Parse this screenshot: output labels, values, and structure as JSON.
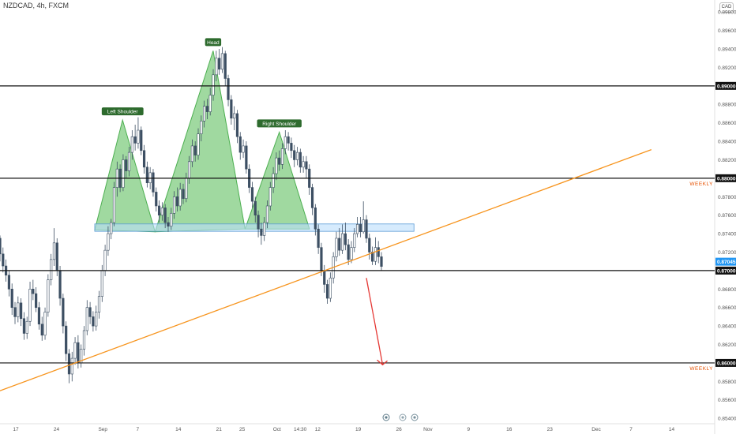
{
  "header": {
    "title": "NZDCAD, 4h, FXCM",
    "currency": "CAD"
  },
  "chart_data": {
    "type": "candlestick",
    "symbol": "NZDCAD",
    "timeframe": "4h",
    "source": "FXCM",
    "ylim": [
      0.8535,
      0.8993
    ],
    "y_ticks": [
      0.854,
      0.856,
      0.858,
      0.86,
      0.862,
      0.864,
      0.866,
      0.868,
      0.87,
      0.872,
      0.874,
      0.876,
      0.878,
      0.88,
      0.882,
      0.884,
      0.886,
      0.888,
      0.89,
      0.892,
      0.894,
      0.896,
      0.898
    ],
    "y_tick_labels": [
      "0.85400",
      "0.85600",
      "0.85800",
      "0.86000",
      "0.86200",
      "0.86400",
      "0.86600",
      "0.86800",
      "0.87000",
      "0.87200",
      "0.87400",
      "0.87600",
      "0.87800",
      "0.88000",
      "0.88200",
      "0.88400",
      "0.88600",
      "0.88800",
      "0.89000",
      "0.89200",
      "0.89400",
      "0.89600",
      "0.89800"
    ],
    "x_ticks": [
      {
        "label": "17",
        "day": 0
      },
      {
        "label": "24",
        "day": 7
      },
      {
        "label": "Sep",
        "day": 15
      },
      {
        "label": "7",
        "day": 21
      },
      {
        "label": "14",
        "day": 28
      },
      {
        "label": "21",
        "day": 35
      },
      {
        "label": "25",
        "day": 39
      },
      {
        "label": "Oct",
        "day": 45
      },
      {
        "label": "14:30",
        "day": 49
      },
      {
        "label": "12",
        "day": 52
      },
      {
        "label": "19",
        "day": 59
      },
      {
        "label": "26",
        "day": 66
      },
      {
        "label": "Nov",
        "day": 71
      },
      {
        "label": "9",
        "day": 78
      },
      {
        "label": "16",
        "day": 85
      },
      {
        "label": "23",
        "day": 92
      },
      {
        "label": "Dec",
        "day": 100
      },
      {
        "label": "7",
        "day": 106
      },
      {
        "label": "14",
        "day": 113
      }
    ],
    "horizontal_levels": [
      {
        "price": 0.89,
        "label": "0.89000"
      },
      {
        "price": 0.88,
        "label": "0.88000",
        "annotation": "WEEKLY"
      },
      {
        "price": 0.87,
        "label": "0.87000"
      },
      {
        "price": 0.86,
        "label": "0.86000",
        "annotation": "WEEKLY"
      }
    ],
    "current_price": {
      "price": 0.87045,
      "label": "0.87045"
    },
    "trendline": {
      "from": {
        "day": -9.1,
        "price": 0.8555
      },
      "to": {
        "day": 109.5,
        "price": 0.8831
      },
      "color": "#f7941d"
    },
    "support_zone": {
      "from_day": 13.6,
      "to_day": 68.6,
      "low": 0.87425,
      "high": 0.87505,
      "color": "#bbdefb"
    },
    "pattern": {
      "name": "Head and Shoulders",
      "points": [
        {
          "day": 13.6,
          "price": 0.8744
        },
        {
          "day": 18.4,
          "price": 0.8863,
          "label": "Left Shoulder"
        },
        {
          "day": 24,
          "price": 0.8742
        },
        {
          "day": 34,
          "price": 0.8938,
          "label": "Head"
        },
        {
          "day": 39.5,
          "price": 0.8745
        },
        {
          "day": 45.4,
          "price": 0.885,
          "label": "Right Shoulder"
        },
        {
          "day": 50.6,
          "price": 0.8745
        }
      ],
      "fill": "#8fd28f",
      "stroke": "#4caf50"
    },
    "projection_arrow": {
      "from": {
        "day": 60.4,
        "price": 0.8692
      },
      "to": {
        "day": 63.2,
        "price": 0.8598
      },
      "color": "#e53935"
    },
    "candles_ohlc": [
      [
        0.8735,
        0.8718,
        0.871,
        0.8738
      ],
      [
        0.8718,
        0.8705,
        0.8698,
        0.8725
      ],
      [
        0.8705,
        0.8695,
        0.8688,
        0.8712
      ],
      [
        0.8695,
        0.868,
        0.8672,
        0.87
      ],
      [
        0.868,
        0.866,
        0.8652,
        0.8686
      ],
      [
        0.866,
        0.865,
        0.8642,
        0.8666
      ],
      [
        0.865,
        0.8665,
        0.8644,
        0.8672
      ],
      [
        0.8665,
        0.8648,
        0.864,
        0.867
      ],
      [
        0.8648,
        0.8632,
        0.8625,
        0.8655
      ],
      [
        0.8632,
        0.8645,
        0.8626,
        0.865
      ],
      [
        0.8645,
        0.868,
        0.864,
        0.8688
      ],
      [
        0.868,
        0.8675,
        0.8668,
        0.869
      ],
      [
        0.8675,
        0.866,
        0.8655,
        0.8682
      ],
      [
        0.866,
        0.8642,
        0.8636,
        0.8666
      ],
      [
        0.8642,
        0.863,
        0.8624,
        0.865
      ],
      [
        0.863,
        0.8655,
        0.8625,
        0.866
      ],
      [
        0.8655,
        0.869,
        0.865,
        0.8696
      ],
      [
        0.869,
        0.8712,
        0.8684,
        0.8718
      ],
      [
        0.8712,
        0.873,
        0.8705,
        0.8746
      ],
      [
        0.873,
        0.87,
        0.8694,
        0.8735
      ],
      [
        0.87,
        0.867,
        0.8662,
        0.8705
      ],
      [
        0.867,
        0.864,
        0.8632,
        0.8675
      ],
      [
        0.864,
        0.861,
        0.8602,
        0.8645
      ],
      [
        0.861,
        0.8588,
        0.8578,
        0.8615
      ],
      [
        0.8588,
        0.8605,
        0.858,
        0.8612
      ],
      [
        0.8605,
        0.8622,
        0.8598,
        0.8628
      ],
      [
        0.8622,
        0.86,
        0.8594,
        0.863
      ],
      [
        0.86,
        0.8615,
        0.8595,
        0.862
      ],
      [
        0.8615,
        0.8635,
        0.8608,
        0.864
      ],
      [
        0.8635,
        0.866,
        0.863,
        0.8668
      ],
      [
        0.866,
        0.865,
        0.8642,
        0.8666
      ],
      [
        0.865,
        0.864,
        0.8634,
        0.8656
      ],
      [
        0.864,
        0.8655,
        0.8635,
        0.8662
      ],
      [
        0.8655,
        0.8672,
        0.8648,
        0.8678
      ],
      [
        0.8672,
        0.87,
        0.8666,
        0.8706
      ],
      [
        0.87,
        0.8722,
        0.8694,
        0.8728
      ],
      [
        0.8722,
        0.874,
        0.8716,
        0.8748
      ],
      [
        0.874,
        0.8752,
        0.8734,
        0.8756
      ],
      [
        0.8752,
        0.879,
        0.8748,
        0.8796
      ],
      [
        0.879,
        0.881,
        0.878,
        0.8818
      ],
      [
        0.881,
        0.879,
        0.8785,
        0.8815
      ],
      [
        0.879,
        0.882,
        0.8786,
        0.8826
      ],
      [
        0.882,
        0.8808,
        0.88,
        0.8824
      ],
      [
        0.8808,
        0.8828,
        0.8802,
        0.8834
      ],
      [
        0.8828,
        0.8845,
        0.882,
        0.8852
      ],
      [
        0.8845,
        0.8838,
        0.883,
        0.8858
      ],
      [
        0.8838,
        0.8852,
        0.8832,
        0.8866
      ],
      [
        0.8852,
        0.883,
        0.8825,
        0.8856
      ],
      [
        0.883,
        0.8812,
        0.8805,
        0.8836
      ],
      [
        0.8812,
        0.8795,
        0.879,
        0.8818
      ],
      [
        0.8795,
        0.8806,
        0.8788,
        0.8812
      ],
      [
        0.8806,
        0.8785,
        0.878,
        0.881
      ],
      [
        0.8785,
        0.877,
        0.8764,
        0.879
      ],
      [
        0.877,
        0.876,
        0.8752,
        0.8776
      ],
      [
        0.876,
        0.8768,
        0.8754,
        0.8774
      ],
      [
        0.8768,
        0.8752,
        0.8746,
        0.8772
      ],
      [
        0.8752,
        0.8748,
        0.8742,
        0.8758
      ],
      [
        0.8748,
        0.8762,
        0.8744,
        0.8768
      ],
      [
        0.8762,
        0.878,
        0.8756,
        0.8786
      ],
      [
        0.878,
        0.877,
        0.8764,
        0.879
      ],
      [
        0.877,
        0.8788,
        0.8765,
        0.8795
      ],
      [
        0.8788,
        0.8778,
        0.8772,
        0.8794
      ],
      [
        0.8778,
        0.88,
        0.8774,
        0.8806
      ],
      [
        0.88,
        0.8818,
        0.8794,
        0.8824
      ],
      [
        0.8818,
        0.8835,
        0.8812,
        0.8842
      ],
      [
        0.8835,
        0.8825,
        0.8818,
        0.884
      ],
      [
        0.8825,
        0.8848,
        0.882,
        0.8854
      ],
      [
        0.8848,
        0.8862,
        0.884,
        0.8868
      ],
      [
        0.8862,
        0.8878,
        0.8855,
        0.8884
      ],
      [
        0.8878,
        0.8872,
        0.8864,
        0.8886
      ],
      [
        0.8872,
        0.889,
        0.8868,
        0.8898
      ],
      [
        0.889,
        0.8912,
        0.8884,
        0.8918
      ],
      [
        0.8912,
        0.893,
        0.8905,
        0.8938
      ],
      [
        0.893,
        0.8918,
        0.8912,
        0.894
      ],
      [
        0.8918,
        0.8935,
        0.8914,
        0.8942
      ],
      [
        0.8935,
        0.8908,
        0.89,
        0.8938
      ],
      [
        0.8908,
        0.8885,
        0.8878,
        0.8912
      ],
      [
        0.8885,
        0.8865,
        0.8858,
        0.889
      ],
      [
        0.8865,
        0.887,
        0.8852,
        0.8878
      ],
      [
        0.887,
        0.8845,
        0.8838,
        0.8874
      ],
      [
        0.8845,
        0.8828,
        0.882,
        0.885
      ],
      [
        0.8828,
        0.8835,
        0.8822,
        0.8842
      ],
      [
        0.8835,
        0.881,
        0.8805,
        0.884
      ],
      [
        0.881,
        0.879,
        0.8784,
        0.8815
      ],
      [
        0.879,
        0.8775,
        0.8768,
        0.8796
      ],
      [
        0.8775,
        0.876,
        0.8752,
        0.878
      ],
      [
        0.876,
        0.8745,
        0.8736,
        0.8765
      ],
      [
        0.8745,
        0.8738,
        0.8728,
        0.8752
      ],
      [
        0.8738,
        0.8752,
        0.8732,
        0.8758
      ],
      [
        0.8752,
        0.877,
        0.8746,
        0.8776
      ],
      [
        0.877,
        0.879,
        0.8765,
        0.8796
      ],
      [
        0.879,
        0.8805,
        0.8784,
        0.8812
      ],
      [
        0.8805,
        0.8822,
        0.8798,
        0.8828
      ],
      [
        0.8822,
        0.8815,
        0.8808,
        0.883
      ],
      [
        0.8815,
        0.8832,
        0.881,
        0.8838
      ],
      [
        0.8832,
        0.8845,
        0.8826,
        0.8852
      ],
      [
        0.8845,
        0.8838,
        0.883,
        0.885
      ],
      [
        0.8838,
        0.883,
        0.8822,
        0.8844
      ],
      [
        0.883,
        0.882,
        0.8812,
        0.8836
      ],
      [
        0.882,
        0.8828,
        0.8814,
        0.8834
      ],
      [
        0.8828,
        0.8812,
        0.8806,
        0.8832
      ],
      [
        0.8812,
        0.8818,
        0.8806,
        0.8824
      ],
      [
        0.8818,
        0.881,
        0.88,
        0.8824
      ],
      [
        0.881,
        0.879,
        0.8782,
        0.8815
      ],
      [
        0.879,
        0.8768,
        0.876,
        0.8794
      ],
      [
        0.8768,
        0.8745,
        0.8738,
        0.8772
      ],
      [
        0.8745,
        0.8725,
        0.8718,
        0.875
      ],
      [
        0.8725,
        0.87,
        0.8694,
        0.873
      ],
      [
        0.87,
        0.8685,
        0.8676,
        0.8706
      ],
      [
        0.8685,
        0.867,
        0.8664,
        0.869
      ],
      [
        0.867,
        0.8692,
        0.8666,
        0.8698
      ],
      [
        0.8692,
        0.8715,
        0.8686,
        0.872
      ],
      [
        0.8715,
        0.8735,
        0.871,
        0.8742
      ],
      [
        0.8735,
        0.8722,
        0.8716,
        0.8746
      ],
      [
        0.8722,
        0.874,
        0.8718,
        0.875
      ],
      [
        0.874,
        0.8728,
        0.8722,
        0.8752
      ],
      [
        0.8728,
        0.8712,
        0.8706,
        0.8734
      ],
      [
        0.8712,
        0.8725,
        0.8708,
        0.8732
      ],
      [
        0.8725,
        0.874,
        0.872,
        0.8746
      ],
      [
        0.874,
        0.875,
        0.8736,
        0.8758
      ],
      [
        0.875,
        0.8742,
        0.8736,
        0.8758
      ],
      [
        0.8742,
        0.8755,
        0.874,
        0.8775
      ],
      [
        0.8755,
        0.8735,
        0.873,
        0.876
      ],
      [
        0.8735,
        0.872,
        0.8712,
        0.874
      ],
      [
        0.872,
        0.871,
        0.8706,
        0.8726
      ],
      [
        0.871,
        0.8725,
        0.8706,
        0.8736
      ],
      [
        0.8725,
        0.8715,
        0.8708,
        0.8732
      ],
      [
        0.8715,
        0.87045,
        0.87,
        0.872
      ]
    ]
  }
}
